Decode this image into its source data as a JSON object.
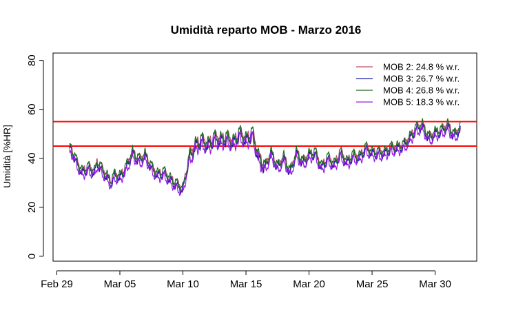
{
  "chart_data": {
    "type": "line",
    "title": "Umidità reparto MOB - Marzo 2016",
    "xlabel": "",
    "ylabel": "Umidità [%HR]",
    "x_ticks": [
      {
        "day": 0,
        "label": "Feb 29"
      },
      {
        "day": 5,
        "label": "Mar 05"
      },
      {
        "day": 10,
        "label": "Mar 10"
      },
      {
        "day": 15,
        "label": "Mar 15"
      },
      {
        "day": 20,
        "label": "Mar 20"
      },
      {
        "day": 25,
        "label": "Mar 25"
      },
      {
        "day": 30,
        "label": "Mar 30"
      }
    ],
    "xlim": [
      -0.3,
      33.3
    ],
    "ylim": [
      -2,
      83
    ],
    "y_ticks": [
      0,
      20,
      40,
      60,
      80
    ],
    "grid": false,
    "legend_position": "top-right",
    "reference_lines": [
      {
        "y": 55,
        "color": "#ff0000"
      },
      {
        "y": 45,
        "color": "#ff0000"
      }
    ],
    "base_profile_days": [
      1.0,
      1.1,
      1.5,
      1.7,
      2.0,
      2.5,
      3.0,
      3.2,
      3.6,
      4.0,
      4.3,
      4.6,
      5.0,
      5.5,
      6.0,
      6.3,
      6.6,
      7.0,
      7.5,
      8.0,
      8.5,
      9.0,
      9.5,
      10.0,
      10.5,
      11.0,
      11.5,
      12.0,
      12.5,
      13.0,
      13.5,
      14.0,
      14.5,
      15.0,
      15.5,
      16.0,
      16.5,
      17.0,
      17.5,
      18.0,
      18.5,
      19.0,
      19.5,
      20.0,
      20.5,
      21.0,
      21.5,
      22.0,
      22.5,
      23.0,
      23.5,
      24.0,
      24.5,
      25.0,
      25.5,
      26.0,
      26.5,
      27.0,
      27.5,
      28.0,
      28.5,
      29.0,
      29.5,
      30.0,
      30.5,
      31.0,
      31.5,
      32.0
    ],
    "base_profile_values": [
      43,
      44,
      39,
      37,
      34,
      36,
      34,
      38,
      35,
      32,
      30,
      33,
      32,
      36,
      42,
      40,
      39,
      41,
      36,
      33,
      34,
      31,
      29,
      27,
      40,
      45,
      47,
      45,
      48,
      47,
      48,
      46,
      50,
      47,
      50,
      40,
      36,
      42,
      36,
      40,
      34,
      42,
      38,
      41,
      42,
      36,
      40,
      37,
      42,
      38,
      41,
      40,
      44,
      42,
      42,
      42,
      44,
      44,
      45,
      48,
      52,
      53,
      48,
      50,
      51,
      53,
      49,
      52
    ],
    "series": [
      {
        "name": "MOB 2:  24.8 % w.r.",
        "color": "#c44e6e",
        "offset": 0.4
      },
      {
        "name": "MOB 3:  26.7 % w.r.",
        "color": "#1a1aa8",
        "offset": -0.3
      },
      {
        "name": "MOB 4:  26.8 % w.r.",
        "color": "#1f6b1f",
        "offset": 1.0
      },
      {
        "name": "MOB 5:  18.3 % w.r.",
        "color": "#9b1ee6",
        "offset": -1.2
      }
    ]
  }
}
